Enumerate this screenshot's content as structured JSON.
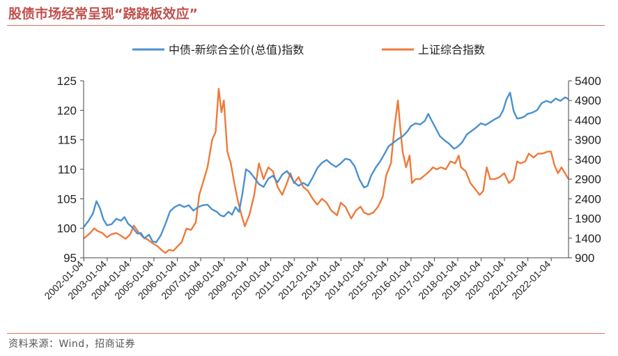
{
  "title": "股债市场经常呈现“跷跷板效应”",
  "source": "资料来源：Wind，招商证券",
  "chart_data": {
    "type": "line",
    "title": "股债市场经常呈现“跷跷板效应”",
    "x_labels": [
      "2002-01-04",
      "2003-01-04",
      "2004-01-04",
      "2005-01-04",
      "2006-01-04",
      "2007-01-04",
      "2008-01-04",
      "2009-01-04",
      "2010-01-04",
      "2011-01-04",
      "2012-01-04",
      "2013-01-04",
      "2014-01-04",
      "2015-01-04",
      "2016-01-04",
      "2017-01-04",
      "2018-01-04",
      "2019-01-04",
      "2020-01-04",
      "2021-01-04",
      "2022-01-04"
    ],
    "x_range": [
      2002.0,
      2022.75
    ],
    "y_left": {
      "ticks": [
        95,
        100,
        105,
        110,
        115,
        120,
        125
      ],
      "lim": [
        95,
        125
      ]
    },
    "y_right": {
      "ticks": [
        900,
        1400,
        1900,
        2400,
        2900,
        3400,
        3900,
        4400,
        4900,
        5400
      ],
      "lim": [
        900,
        5400
      ]
    },
    "legend_position": "top-center",
    "series": [
      {
        "name": "中债-新综合全价(总值)指数",
        "axis": "left",
        "color": "#4a90d0",
        "points": [
          [
            2002.0,
            100.2
          ],
          [
            2002.2,
            101.2
          ],
          [
            2002.4,
            102.5
          ],
          [
            2002.55,
            104.6
          ],
          [
            2002.7,
            103.4
          ],
          [
            2002.85,
            101.5
          ],
          [
            2003.0,
            100.5
          ],
          [
            2003.2,
            100.7
          ],
          [
            2003.4,
            101.6
          ],
          [
            2003.6,
            101.3
          ],
          [
            2003.75,
            101.9
          ],
          [
            2003.9,
            100.8
          ],
          [
            2004.1,
            100.1
          ],
          [
            2004.3,
            99.1
          ],
          [
            2004.45,
            99.2
          ],
          [
            2004.6,
            98.3
          ],
          [
            2004.8,
            98.9
          ],
          [
            2004.95,
            97.8
          ],
          [
            2005.1,
            97.6
          ],
          [
            2005.3,
            98.8
          ],
          [
            2005.5,
            100.7
          ],
          [
            2005.7,
            102.9
          ],
          [
            2005.9,
            103.6
          ],
          [
            2006.1,
            104.0
          ],
          [
            2006.3,
            103.6
          ],
          [
            2006.5,
            103.9
          ],
          [
            2006.7,
            103.0
          ],
          [
            2006.9,
            103.6
          ],
          [
            2007.1,
            103.9
          ],
          [
            2007.3,
            104.0
          ],
          [
            2007.5,
            103.2
          ],
          [
            2007.7,
            102.8
          ],
          [
            2007.85,
            102.2
          ],
          [
            2008.0,
            102.0
          ],
          [
            2008.2,
            102.8
          ],
          [
            2008.35,
            102.3
          ],
          [
            2008.5,
            103.6
          ],
          [
            2008.65,
            102.8
          ],
          [
            2008.8,
            106.0
          ],
          [
            2008.95,
            110.0
          ],
          [
            2009.1,
            109.6
          ],
          [
            2009.3,
            108.6
          ],
          [
            2009.5,
            107.5
          ],
          [
            2009.7,
            107.0
          ],
          [
            2009.9,
            108.4
          ],
          [
            2010.1,
            108.9
          ],
          [
            2010.3,
            107.8
          ],
          [
            2010.5,
            109.1
          ],
          [
            2010.7,
            109.7
          ],
          [
            2010.85,
            108.9
          ],
          [
            2011.0,
            107.8
          ],
          [
            2011.2,
            107.2
          ],
          [
            2011.4,
            107.7
          ],
          [
            2011.6,
            107.2
          ],
          [
            2011.8,
            108.6
          ],
          [
            2012.0,
            110.2
          ],
          [
            2012.2,
            111.1
          ],
          [
            2012.4,
            111.6
          ],
          [
            2012.6,
            110.9
          ],
          [
            2012.8,
            110.4
          ],
          [
            2013.0,
            111.0
          ],
          [
            2013.2,
            111.8
          ],
          [
            2013.4,
            111.6
          ],
          [
            2013.6,
            110.5
          ],
          [
            2013.8,
            108.3
          ],
          [
            2014.0,
            106.9
          ],
          [
            2014.15,
            107.2
          ],
          [
            2014.3,
            108.9
          ],
          [
            2014.5,
            110.3
          ],
          [
            2014.7,
            111.4
          ],
          [
            2014.9,
            112.8
          ],
          [
            2015.05,
            113.9
          ],
          [
            2015.25,
            114.5
          ],
          [
            2015.45,
            115.1
          ],
          [
            2015.65,
            115.6
          ],
          [
            2015.85,
            116.4
          ],
          [
            2016.0,
            117.3
          ],
          [
            2016.2,
            117.8
          ],
          [
            2016.4,
            117.6
          ],
          [
            2016.6,
            118.2
          ],
          [
            2016.75,
            119.4
          ],
          [
            2016.9,
            118.2
          ],
          [
            2017.05,
            117.1
          ],
          [
            2017.25,
            115.6
          ],
          [
            2017.45,
            114.9
          ],
          [
            2017.65,
            114.3
          ],
          [
            2017.85,
            113.5
          ],
          [
            2018.0,
            113.8
          ],
          [
            2018.2,
            114.6
          ],
          [
            2018.4,
            115.9
          ],
          [
            2018.6,
            116.5
          ],
          [
            2018.8,
            117.1
          ],
          [
            2019.0,
            117.8
          ],
          [
            2019.2,
            117.5
          ],
          [
            2019.4,
            118.0
          ],
          [
            2019.6,
            118.5
          ],
          [
            2019.8,
            118.9
          ],
          [
            2019.95,
            120.0
          ],
          [
            2020.1,
            121.9
          ],
          [
            2020.25,
            123.0
          ],
          [
            2020.4,
            119.9
          ],
          [
            2020.55,
            118.6
          ],
          [
            2020.7,
            118.7
          ],
          [
            2020.85,
            118.9
          ],
          [
            2021.0,
            119.4
          ],
          [
            2021.2,
            119.6
          ],
          [
            2021.4,
            120.0
          ],
          [
            2021.6,
            121.2
          ],
          [
            2021.8,
            121.6
          ],
          [
            2022.0,
            121.3
          ],
          [
            2022.2,
            122.0
          ],
          [
            2022.4,
            121.6
          ],
          [
            2022.6,
            122.2
          ],
          [
            2022.75,
            121.9
          ]
        ]
      },
      {
        "name": "上证综合指数",
        "axis": "right",
        "color": "#ee7a3a",
        "points": [
          [
            2002.0,
            1390
          ],
          [
            2002.15,
            1460
          ],
          [
            2002.3,
            1540
          ],
          [
            2002.45,
            1650
          ],
          [
            2002.6,
            1580
          ],
          [
            2002.8,
            1530
          ],
          [
            2003.0,
            1420
          ],
          [
            2003.2,
            1500
          ],
          [
            2003.4,
            1530
          ],
          [
            2003.6,
            1460
          ],
          [
            2003.8,
            1380
          ],
          [
            2004.0,
            1500
          ],
          [
            2004.15,
            1720
          ],
          [
            2004.35,
            1550
          ],
          [
            2004.55,
            1420
          ],
          [
            2004.75,
            1360
          ],
          [
            2004.95,
            1270
          ],
          [
            2005.15,
            1200
          ],
          [
            2005.35,
            1090
          ],
          [
            2005.5,
            1020
          ],
          [
            2005.65,
            1100
          ],
          [
            2005.85,
            1080
          ],
          [
            2006.0,
            1180
          ],
          [
            2006.2,
            1300
          ],
          [
            2006.4,
            1640
          ],
          [
            2006.6,
            1610
          ],
          [
            2006.8,
            1800
          ],
          [
            2006.95,
            2500
          ],
          [
            2007.1,
            2800
          ],
          [
            2007.3,
            3200
          ],
          [
            2007.5,
            3900
          ],
          [
            2007.65,
            4100
          ],
          [
            2007.78,
            5200
          ],
          [
            2007.9,
            4600
          ],
          [
            2008.0,
            4900
          ],
          [
            2008.15,
            3600
          ],
          [
            2008.3,
            3300
          ],
          [
            2008.45,
            2800
          ],
          [
            2008.6,
            2350
          ],
          [
            2008.75,
            2000
          ],
          [
            2008.9,
            1700
          ],
          [
            2009.1,
            2000
          ],
          [
            2009.3,
            2500
          ],
          [
            2009.5,
            3300
          ],
          [
            2009.7,
            2900
          ],
          [
            2009.9,
            3200
          ],
          [
            2010.1,
            3100
          ],
          [
            2010.3,
            2700
          ],
          [
            2010.5,
            2500
          ],
          [
            2010.7,
            2800
          ],
          [
            2010.85,
            3050
          ],
          [
            2011.0,
            2800
          ],
          [
            2011.2,
            2950
          ],
          [
            2011.4,
            2700
          ],
          [
            2011.6,
            2600
          ],
          [
            2011.8,
            2400
          ],
          [
            2012.0,
            2250
          ],
          [
            2012.2,
            2400
          ],
          [
            2012.4,
            2300
          ],
          [
            2012.6,
            2100
          ],
          [
            2012.85,
            1980
          ],
          [
            2013.0,
            2300
          ],
          [
            2013.2,
            2200
          ],
          [
            2013.45,
            1900
          ],
          [
            2013.65,
            2100
          ],
          [
            2013.85,
            2200
          ],
          [
            2014.0,
            2050
          ],
          [
            2014.2,
            2000
          ],
          [
            2014.4,
            2050
          ],
          [
            2014.6,
            2200
          ],
          [
            2014.8,
            2450
          ],
          [
            2014.95,
            3000
          ],
          [
            2015.15,
            3300
          ],
          [
            2015.3,
            4200
          ],
          [
            2015.45,
            4900
          ],
          [
            2015.55,
            4200
          ],
          [
            2015.65,
            3600
          ],
          [
            2015.8,
            3200
          ],
          [
            2015.95,
            3500
          ],
          [
            2016.05,
            2800
          ],
          [
            2016.2,
            2900
          ],
          [
            2016.4,
            2900
          ],
          [
            2016.6,
            3000
          ],
          [
            2016.8,
            3100
          ],
          [
            2016.95,
            3200
          ],
          [
            2017.1,
            3150
          ],
          [
            2017.3,
            3200
          ],
          [
            2017.5,
            3150
          ],
          [
            2017.7,
            3350
          ],
          [
            2017.9,
            3300
          ],
          [
            2018.05,
            3500
          ],
          [
            2018.15,
            3200
          ],
          [
            2018.35,
            3100
          ],
          [
            2018.55,
            2800
          ],
          [
            2018.75,
            2650
          ],
          [
            2018.95,
            2500
          ],
          [
            2019.1,
            2600
          ],
          [
            2019.25,
            3200
          ],
          [
            2019.4,
            2900
          ],
          [
            2019.6,
            2900
          ],
          [
            2019.8,
            2950
          ],
          [
            2020.0,
            3050
          ],
          [
            2020.2,
            2800
          ],
          [
            2020.4,
            2900
          ],
          [
            2020.55,
            3350
          ],
          [
            2020.7,
            3300
          ],
          [
            2020.9,
            3350
          ],
          [
            2021.05,
            3550
          ],
          [
            2021.25,
            3450
          ],
          [
            2021.45,
            3550
          ],
          [
            2021.65,
            3550
          ],
          [
            2021.85,
            3600
          ],
          [
            2022.0,
            3600
          ],
          [
            2022.15,
            3250
          ],
          [
            2022.3,
            3050
          ],
          [
            2022.45,
            3200
          ],
          [
            2022.6,
            3050
          ],
          [
            2022.75,
            2900
          ]
        ]
      }
    ]
  }
}
